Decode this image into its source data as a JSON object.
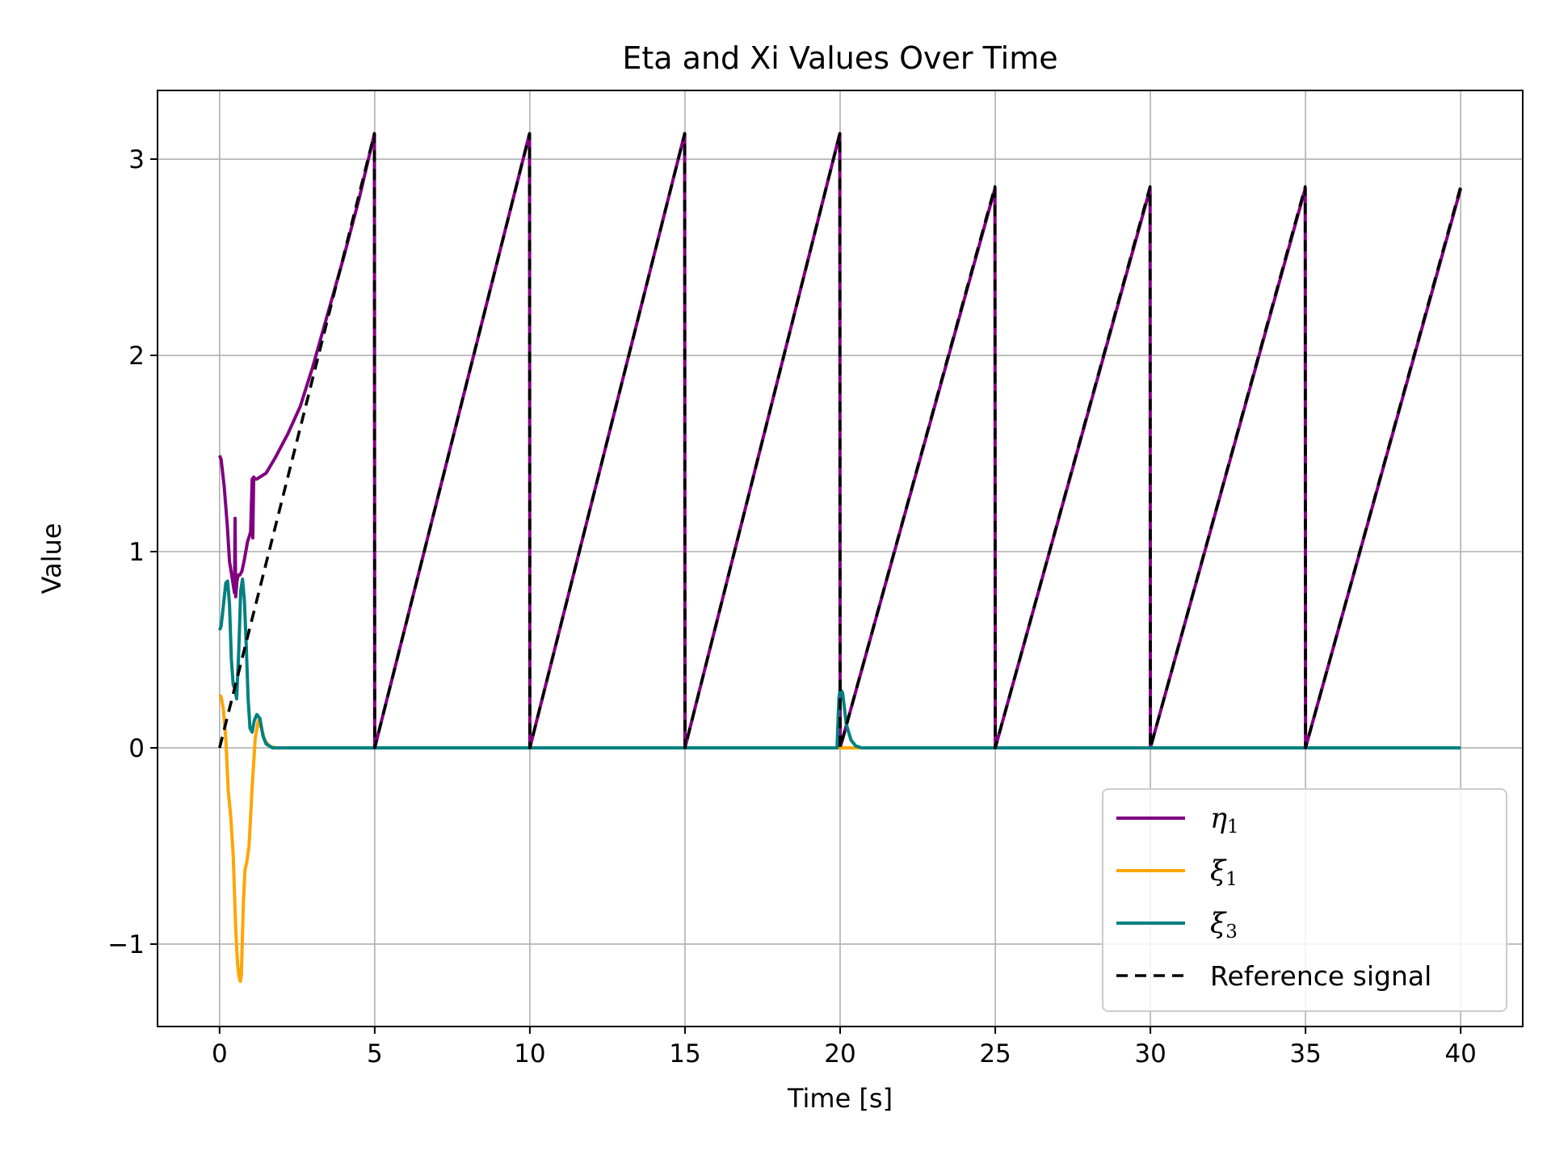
{
  "chart_data": {
    "type": "line",
    "title": "Eta and Xi Values Over Time",
    "xlabel": "Time [s]",
    "ylabel": "Value",
    "xlim": [
      -2,
      42
    ],
    "ylim": [
      -1.42,
      3.35
    ],
    "xticks": [
      0,
      5,
      10,
      15,
      20,
      25,
      30,
      35,
      40
    ],
    "xtick_labels": [
      "0",
      "5",
      "10",
      "15",
      "20",
      "25",
      "30",
      "35",
      "40"
    ],
    "yticks": [
      -1,
      0,
      1,
      2,
      3
    ],
    "ytick_labels": [
      "−1",
      "0",
      "1",
      "2",
      "3"
    ],
    "grid": true,
    "legend_position": "lower-right",
    "series": [
      {
        "name": "η1",
        "legend_symbol": "η",
        "legend_sub": "1",
        "color": "#800080",
        "style": "solid",
        "x": [
          0,
          0.05,
          0.15,
          0.25,
          0.32,
          0.42,
          0.48,
          0.5,
          0.52,
          0.56,
          0.6,
          0.65,
          0.72,
          0.8,
          0.9,
          1.0,
          1.05,
          1.07,
          1.1,
          1.15,
          1.2,
          1.3,
          1.5,
          1.8,
          2.2,
          2.6,
          3.0,
          3.5,
          4.0,
          4.5,
          4.99,
          5.0,
          9.99,
          10.0,
          14.99,
          15.0,
          19.99,
          20.0,
          24.99,
          25.0,
          29.99,
          30.0,
          34.99,
          35.0,
          40.0
        ],
        "y": [
          1.49,
          1.47,
          1.33,
          1.13,
          0.95,
          0.85,
          0.79,
          1.17,
          0.77,
          0.85,
          0.88,
          0.88,
          0.9,
          0.96,
          1.05,
          1.1,
          1.37,
          1.07,
          1.38,
          1.37,
          1.37,
          1.38,
          1.4,
          1.48,
          1.6,
          1.74,
          1.94,
          2.22,
          2.5,
          2.8,
          3.13,
          0.0,
          3.13,
          0.0,
          3.13,
          0.0,
          3.13,
          0.0,
          2.85,
          0.0,
          2.85,
          0.0,
          2.85,
          0.0,
          2.85
        ]
      },
      {
        "name": "ξ1",
        "legend_symbol": "ξ",
        "legend_sub": "1",
        "color": "#ffa500",
        "style": "solid",
        "x": [
          0,
          0.05,
          0.12,
          0.2,
          0.28,
          0.36,
          0.44,
          0.52,
          0.58,
          0.63,
          0.67,
          0.7,
          0.73,
          0.77,
          0.82,
          0.88,
          0.95,
          1.05,
          1.15,
          1.25,
          1.35,
          1.45,
          1.6,
          1.8,
          2.2,
          40.0
        ],
        "y": [
          0.27,
          0.26,
          0.2,
          0.05,
          -0.22,
          -0.35,
          -0.55,
          -0.92,
          -1.1,
          -1.17,
          -1.19,
          -1.16,
          -1.0,
          -0.78,
          -0.62,
          -0.58,
          -0.5,
          -0.2,
          0.05,
          0.14,
          0.1,
          0.04,
          0.01,
          0.0,
          0.0,
          0.0
        ]
      },
      {
        "name": "ξ3",
        "legend_symbol": "ξ",
        "legend_sub": "3",
        "color": "#008080",
        "style": "solid",
        "x": [
          0,
          0.05,
          0.12,
          0.2,
          0.26,
          0.32,
          0.38,
          0.44,
          0.5,
          0.55,
          0.62,
          0.68,
          0.74,
          0.8,
          0.86,
          0.92,
          0.98,
          1.05,
          1.12,
          1.2,
          1.3,
          1.4,
          1.5,
          1.6,
          1.7,
          1.85,
          2.0,
          19.9,
          19.96,
          20.0,
          20.08,
          20.2,
          20.35,
          20.5,
          20.7,
          40.0
        ],
        "y": [
          0.6,
          0.62,
          0.72,
          0.84,
          0.85,
          0.73,
          0.45,
          0.32,
          0.3,
          0.25,
          0.5,
          0.8,
          0.86,
          0.75,
          0.52,
          0.25,
          0.1,
          0.08,
          0.14,
          0.17,
          0.15,
          0.06,
          0.02,
          0.01,
          0.0,
          0.0,
          0.0,
          0.0,
          0.25,
          0.3,
          0.28,
          0.12,
          0.04,
          0.01,
          0.0,
          0.0
        ]
      },
      {
        "name": "Reference signal",
        "legend_symbol": "",
        "legend_sub": "",
        "color": "#000000",
        "style": "dashed",
        "x": [
          0,
          4.99,
          5.0,
          9.99,
          10.0,
          14.99,
          15.0,
          19.99,
          20.0,
          24.99,
          25.0,
          29.99,
          30.0,
          34.99,
          35.0,
          40.0
        ],
        "y": [
          0,
          3.13,
          0,
          3.13,
          0,
          3.13,
          0,
          3.13,
          0,
          2.86,
          0,
          2.86,
          0,
          2.86,
          0,
          2.86
        ]
      }
    ]
  }
}
